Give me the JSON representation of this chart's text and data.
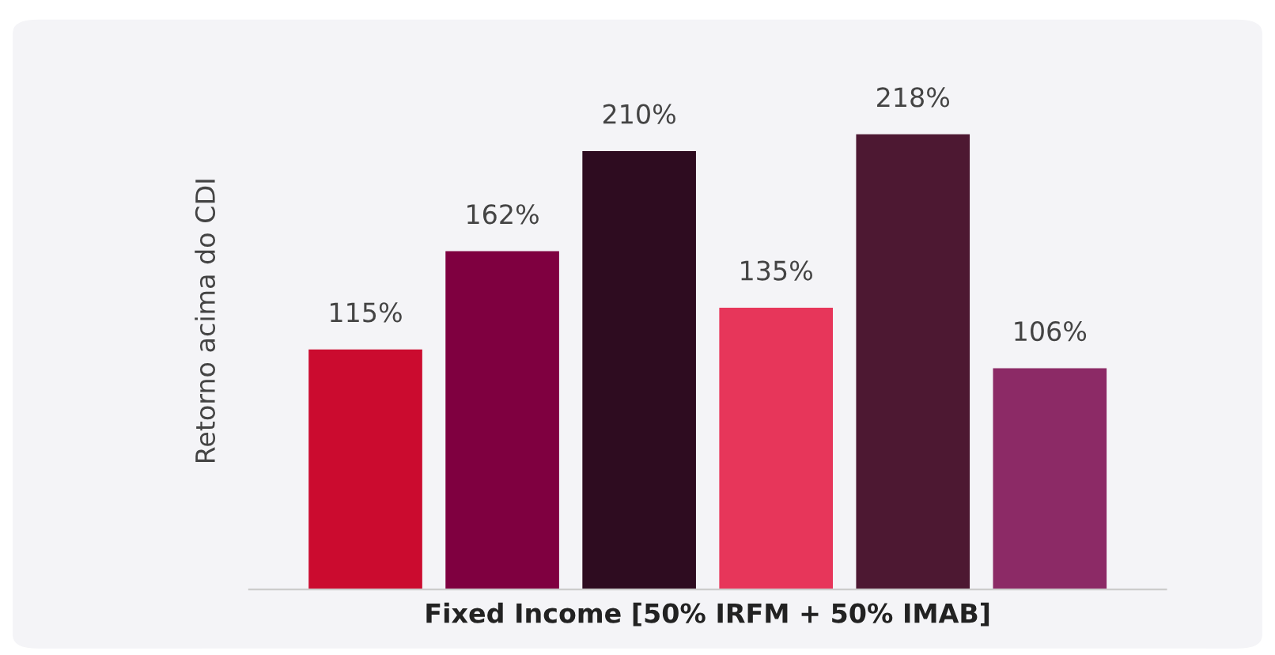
{
  "chart_data": {
    "type": "bar",
    "categories": [
      null,
      null,
      null,
      null,
      null,
      null
    ],
    "values": [
      115,
      162,
      210,
      135,
      218,
      106
    ],
    "value_labels": [
      "115%",
      "162%",
      "210%",
      "135%",
      "218%",
      "106%"
    ],
    "colors": [
      "#cb0b2f",
      "#7f0040",
      "#2e0c20",
      "#e7365a",
      "#4d1832",
      "#8c2a66"
    ],
    "ylabel": "Retorno acima do CDI",
    "xlabel": "Fixed Income [50% IRFM + 50% IMAB]",
    "tick_labels": false,
    "grid": false,
    "legend": false
  }
}
